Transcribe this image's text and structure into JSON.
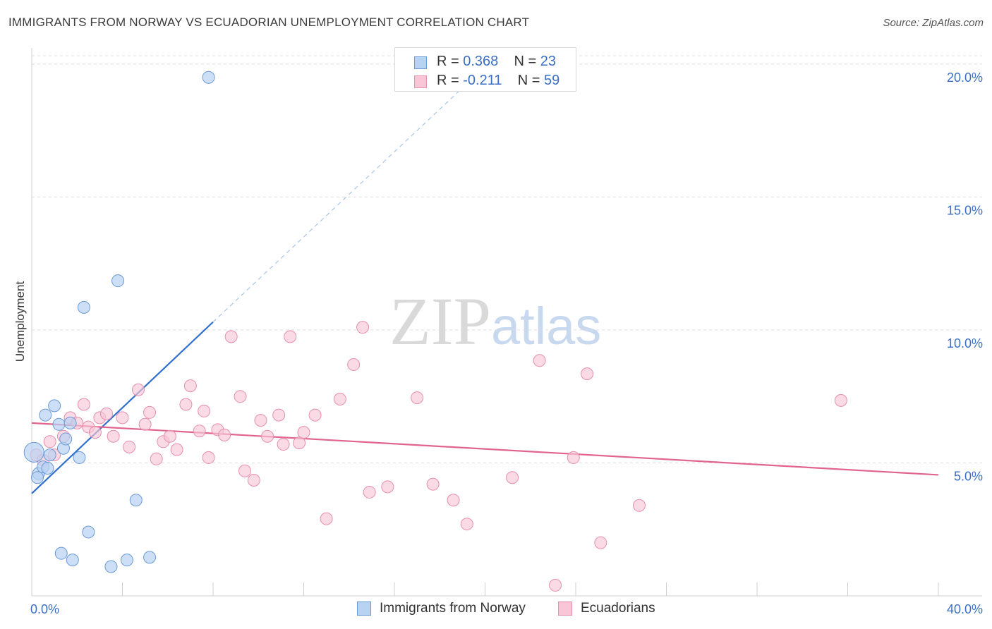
{
  "header": {
    "title": "IMMIGRANTS FROM NORWAY VS ECUADORIAN UNEMPLOYMENT CORRELATION CHART",
    "source": "Source: ZipAtlas.com"
  },
  "watermark": {
    "zip": "ZIP",
    "atlas": "atlas"
  },
  "legend": {
    "rows": [
      {
        "r_label": "R =",
        "r_value": "0.368",
        "n_label": "N =",
        "n_value": "23"
      },
      {
        "r_label": "R =",
        "r_value": "-0.211",
        "n_label": "N =",
        "n_value": "59"
      }
    ]
  },
  "bottom_legend": {
    "series1": "Immigrants from Norway",
    "series2": "Ecuadorians"
  },
  "colors": {
    "blue_fill": "#b8d2f2",
    "blue_stroke": "#6b9ad8",
    "blue_line": "#2f6fce",
    "pink_fill": "#f8c6d6",
    "pink_stroke": "#e78fac",
    "pink_line": "#e2648e",
    "grid": "#dcdcdc",
    "tick_text": "#3a6fc4"
  },
  "chart_data": {
    "type": "scatter",
    "title": "IMMIGRANTS FROM NORWAY VS ECUADORIAN UNEMPLOYMENT CORRELATION CHART",
    "xlabel": "",
    "ylabel": "Unemployment",
    "xlim": [
      0,
      40
    ],
    "ylim": [
      0,
      20.5
    ],
    "x_tick_labels": [
      "0.0%",
      "40.0%"
    ],
    "y_ticks": [
      5,
      10,
      15,
      20
    ],
    "y_tick_labels": [
      "5.0%",
      "10.0%",
      "15.0%",
      "20.0%"
    ],
    "series": [
      {
        "name": "Immigrants from Norway",
        "r": 0.368,
        "n": 23,
        "points": [
          [
            0.1,
            5.4
          ],
          [
            0.3,
            4.6
          ],
          [
            0.5,
            4.85
          ],
          [
            0.7,
            4.8
          ],
          [
            0.6,
            6.8
          ],
          [
            1.0,
            7.15
          ],
          [
            1.2,
            6.45
          ],
          [
            1.4,
            5.55
          ],
          [
            1.5,
            5.9
          ],
          [
            1.7,
            6.5
          ],
          [
            2.1,
            5.2
          ],
          [
            2.3,
            10.85
          ],
          [
            3.8,
            11.85
          ],
          [
            7.8,
            19.5
          ],
          [
            4.6,
            3.6
          ],
          [
            2.5,
            2.4
          ],
          [
            1.3,
            1.6
          ],
          [
            1.8,
            1.35
          ],
          [
            3.5,
            1.1
          ],
          [
            4.2,
            1.35
          ],
          [
            5.2,
            1.45
          ],
          [
            0.8,
            5.3
          ],
          [
            0.25,
            4.45
          ]
        ],
        "trend": {
          "x": [
            0,
            8.0
          ],
          "y": [
            3.85,
            10.3
          ],
          "dash_to": [
            19.0,
            19.1
          ]
        }
      },
      {
        "name": "Ecuadorians",
        "r": -0.211,
        "n": 59,
        "points": [
          [
            0.2,
            5.3
          ],
          [
            0.5,
            5.1
          ],
          [
            0.8,
            5.8
          ],
          [
            1.0,
            5.3
          ],
          [
            1.4,
            6.0
          ],
          [
            1.7,
            6.7
          ],
          [
            2.0,
            6.5
          ],
          [
            2.3,
            7.2
          ],
          [
            2.5,
            6.35
          ],
          [
            2.8,
            6.15
          ],
          [
            3.0,
            6.7
          ],
          [
            3.3,
            6.85
          ],
          [
            3.6,
            6.0
          ],
          [
            4.0,
            6.7
          ],
          [
            4.3,
            5.6
          ],
          [
            4.7,
            7.75
          ],
          [
            5.0,
            6.45
          ],
          [
            5.2,
            6.9
          ],
          [
            5.5,
            5.15
          ],
          [
            5.8,
            5.8
          ],
          [
            6.1,
            6.0
          ],
          [
            6.4,
            5.5
          ],
          [
            6.8,
            7.2
          ],
          [
            7.0,
            7.9
          ],
          [
            7.4,
            6.2
          ],
          [
            7.6,
            6.95
          ],
          [
            7.8,
            5.2
          ],
          [
            8.2,
            6.25
          ],
          [
            8.5,
            6.05
          ],
          [
            8.8,
            9.75
          ],
          [
            9.2,
            7.5
          ],
          [
            9.4,
            4.7
          ],
          [
            9.8,
            4.35
          ],
          [
            10.1,
            6.6
          ],
          [
            10.4,
            6.0
          ],
          [
            10.9,
            6.8
          ],
          [
            11.1,
            5.7
          ],
          [
            11.4,
            9.75
          ],
          [
            11.8,
            5.75
          ],
          [
            12.0,
            6.15
          ],
          [
            12.5,
            6.8
          ],
          [
            13.0,
            2.9
          ],
          [
            13.6,
            7.4
          ],
          [
            14.2,
            8.7
          ],
          [
            14.6,
            10.1
          ],
          [
            14.9,
            3.9
          ],
          [
            15.7,
            4.1
          ],
          [
            17.0,
            7.45
          ],
          [
            17.7,
            4.2
          ],
          [
            18.6,
            3.6
          ],
          [
            19.2,
            2.7
          ],
          [
            21.2,
            4.45
          ],
          [
            22.4,
            8.85
          ],
          [
            23.1,
            0.4
          ],
          [
            23.9,
            5.2
          ],
          [
            24.5,
            8.35
          ],
          [
            25.1,
            2.0
          ],
          [
            26.8,
            3.4
          ],
          [
            35.7,
            7.35
          ]
        ],
        "trend": {
          "x": [
            0,
            40
          ],
          "y": [
            6.5,
            4.55
          ]
        }
      }
    ]
  }
}
